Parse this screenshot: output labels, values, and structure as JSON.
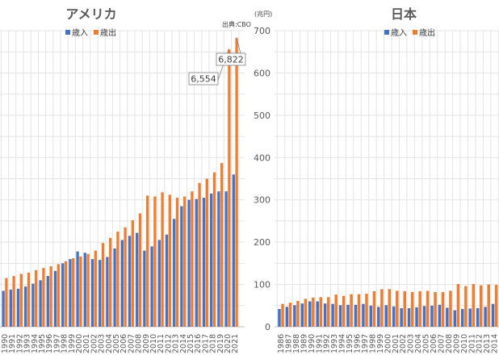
{
  "colors": {
    "revenue": "#4472c4",
    "outlays": "#ed7d31",
    "grid": "#e3e3e3",
    "axis": "#bfbfbf"
  },
  "chart_data": [
    {
      "type": "bar",
      "title": "アメリカ",
      "source": "出典:CBO",
      "legend_position": "top",
      "categories": [
        "1990",
        "1991",
        "1992",
        "1993",
        "1994",
        "1995",
        "1996",
        "1997",
        "1998",
        "1999",
        "2000",
        "2001",
        "2002",
        "2003",
        "2004",
        "2005",
        "2006",
        "2007",
        "2008",
        "2009",
        "2010",
        "2011",
        "2012",
        "2013",
        "2014",
        "2015",
        "2016",
        "2017",
        "2018",
        "2019",
        "2020",
        "2021"
      ],
      "ylim": [
        0,
        700
      ],
      "series": [
        {
          "name": "歳入",
          "values": [
            85,
            88,
            90,
            95,
            102,
            110,
            120,
            132,
            150,
            160,
            178,
            175,
            160,
            158,
            165,
            185,
            205,
            215,
            222,
            180,
            190,
            205,
            218,
            255,
            285,
            300,
            302,
            305,
            315,
            320,
            320,
            360
          ]
        },
        {
          "name": "歳出",
          "values": [
            115,
            120,
            125,
            128,
            134,
            139,
            143,
            148,
            155,
            162,
            166,
            172,
            180,
            198,
            210,
            225,
            235,
            252,
            268,
            310,
            308,
            318,
            312,
            305,
            308,
            320,
            340,
            350,
            365,
            387,
            655.4,
            682.2
          ]
        }
      ],
      "annotations": [
        {
          "category": "2020",
          "text": "6,554"
        },
        {
          "category": "2021",
          "text": "6,822"
        }
      ],
      "grid": true
    },
    {
      "type": "bar",
      "title": "日本",
      "unit_label": "(兆円)",
      "legend_position": "top",
      "categories": [
        "1986",
        "1987",
        "1988",
        "1989",
        "1990",
        "1991",
        "1992",
        "1993",
        "1994",
        "1995",
        "1996",
        "1997",
        "1998",
        "1999",
        "2000",
        "2001",
        "2002",
        "2003",
        "2004",
        "2005",
        "2006",
        "2007",
        "2008",
        "2009",
        "2010",
        "2011",
        "2012",
        "2013",
        "2014"
      ],
      "yticks": [
        "0",
        "100",
        "200",
        "300",
        "400",
        "500",
        "600",
        "700"
      ],
      "ylim": [
        0,
        700
      ],
      "series": [
        {
          "name": "歳入",
          "values": [
            42,
            47,
            51,
            55,
            60,
            60,
            55,
            54,
            51,
            52,
            52,
            54,
            50,
            47,
            51,
            48,
            44,
            44,
            46,
            49,
            50,
            52,
            45,
            39,
            42,
            43,
            44,
            47,
            54
          ]
        },
        {
          "name": "歳出",
          "values": [
            54,
            57,
            61,
            66,
            69,
            70,
            70,
            76,
            73,
            77,
            77,
            78,
            84,
            89,
            89,
            85,
            84,
            82,
            84,
            85,
            82,
            82,
            85,
            101,
            96,
            101,
            98,
            100,
            99
          ]
        }
      ],
      "grid": true
    }
  ]
}
